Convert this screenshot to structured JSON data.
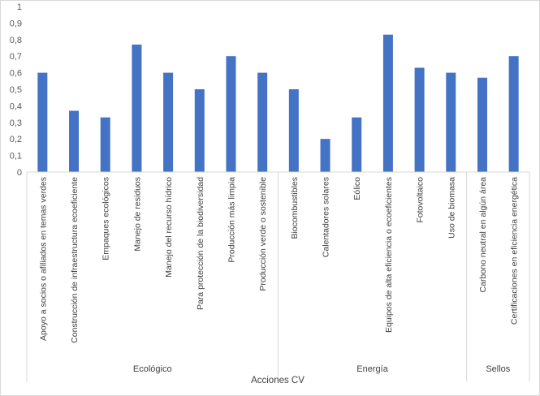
{
  "chart_data": {
    "type": "bar",
    "categories": [
      "Apoyo a socios o afiliados en temas verdes",
      "Construcción de infraestructura ecoeficiente",
      "Empaques ecológicos",
      "Manejo de residuos",
      "Manejo del recurso hídrico",
      "Para protección de la biodiversidad",
      "Producción más limpia",
      "Producción verde o sostenible",
      "Biocombustibles",
      "Calentadores solares",
      "Eólico",
      "Equipos de alta eficiencia o ecoeficientes",
      "Fotovoltaico",
      "Uso de biomasa",
      "Carbono neutral en algún área",
      "Certificaciones  en eficiencia energética"
    ],
    "values": [
      0.6,
      0.37,
      0.33,
      0.77,
      0.6,
      0.5,
      0.7,
      0.6,
      0.5,
      0.2,
      0.33,
      0.83,
      0.63,
      0.6,
      0.57,
      0.7
    ],
    "groups": [
      {
        "label": "Ecológico",
        "count": 8
      },
      {
        "label": "Energía",
        "count": 6
      },
      {
        "label": "Sellos",
        "count": 2
      }
    ],
    "xlabel": "Acciones CV",
    "ylabel": "",
    "ylim": [
      0,
      1
    ],
    "yticks": [
      "0",
      "0,1",
      "0,2",
      "0,3",
      "0,4",
      "0,5",
      "0,6",
      "0,7",
      "0,8",
      "0,9",
      "1"
    ],
    "grid": false,
    "bar_color": "#4472c4",
    "axis_color": "#d9d9d9"
  }
}
